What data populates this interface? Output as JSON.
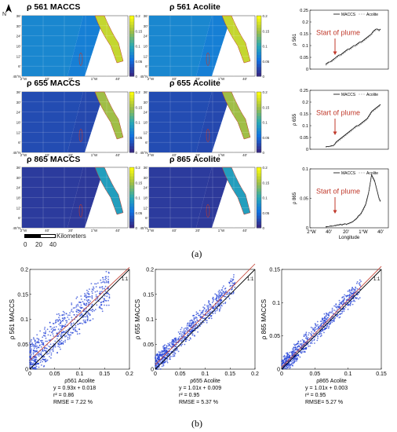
{
  "north_arrow": "N",
  "maps": [
    {
      "title": "ρ 561 MACCS",
      "cbar_ticks": [
        "0.2",
        "0.15",
        "0.1",
        "0.05",
        "0"
      ]
    },
    {
      "title": "ρ 561 Acolite",
      "cbar_ticks": [
        "0.2",
        "0.15",
        "0.1",
        "0.05",
        "0"
      ]
    },
    {
      "title": "ρ 655 MACCS",
      "cbar_ticks": [
        "0.2",
        "0.15",
        "0.1",
        "0.05",
        "0"
      ]
    },
    {
      "title": "ρ 655 Acolite",
      "cbar_ticks": [
        "0.2",
        "0.15",
        "0.1",
        "0.05",
        "0"
      ]
    },
    {
      "title": "ρ 865 MACCS",
      "cbar_ticks": [
        "0.2",
        "0.15",
        "0.1",
        "0.05",
        "0"
      ]
    },
    {
      "title": "ρ 865 Acolite",
      "cbar_ticks": [
        "0.2",
        "0.15",
        "0.1",
        "0.05",
        "0"
      ]
    }
  ],
  "map_lat_ticks": [
    "36'",
    "30'",
    "24'",
    "18'",
    "12'",
    "6'",
    "45°N"
  ],
  "map_lon_ticks": [
    "2°W",
    "40'",
    "20'",
    "1°W",
    "40'"
  ],
  "scale_bar": {
    "label": "Kilometers",
    "ticks": [
      "0",
      "20",
      "40"
    ]
  },
  "caption_a": "(a)",
  "caption_b": "(b)",
  "chart_data": [
    {
      "type": "line",
      "ylabel": "ρ 561",
      "ylim": [
        0,
        0.25
      ],
      "yticks": [
        "0.25",
        "0.2",
        "0.15",
        "0.1",
        "0.05",
        "0"
      ],
      "annotation": "Start of plume",
      "series": [
        {
          "name": "MACCS",
          "color": "#000000",
          "values": [
            0.02,
            0.025,
            0.03,
            0.03,
            0.035,
            0.04,
            0.045,
            0.05,
            0.055,
            0.06,
            0.06,
            0.065,
            0.07,
            0.075,
            0.08,
            0.085,
            0.085,
            0.09,
            0.095,
            0.1,
            0.1,
            0.105,
            0.11,
            0.115,
            0.115,
            0.12,
            0.125,
            0.13,
            0.135,
            0.14,
            0.145,
            0.15,
            0.16,
            0.165,
            0.17,
            0.17,
            0.165,
            0.17
          ]
        },
        {
          "name": "Acolite",
          "color": "#888888",
          "values": [
            0.015,
            0.02,
            0.025,
            0.03,
            0.03,
            0.035,
            0.04,
            0.045,
            0.05,
            0.055,
            0.055,
            0.06,
            0.065,
            0.07,
            0.075,
            0.08,
            0.08,
            0.085,
            0.09,
            0.095,
            0.095,
            0.1,
            0.105,
            0.11,
            0.11,
            0.115,
            0.12,
            0.125,
            0.13,
            0.135,
            0.14,
            0.145,
            0.155,
            0.16,
            0.165,
            0.165,
            0.16,
            0.165
          ]
        }
      ]
    },
    {
      "type": "line",
      "ylabel": "ρ 655",
      "ylim": [
        0,
        0.25
      ],
      "yticks": [
        "0.25",
        "0.2",
        "0.15",
        "0.1",
        "0.05",
        "0"
      ],
      "annotation": "Start of plume",
      "series": [
        {
          "name": "MACCS",
          "color": "#000000",
          "values": [
            0.01,
            0.012,
            0.012,
            0.013,
            0.015,
            0.015,
            0.02,
            0.03,
            0.035,
            0.04,
            0.045,
            0.05,
            0.055,
            0.06,
            0.065,
            0.07,
            0.075,
            0.08,
            0.085,
            0.09,
            0.095,
            0.1,
            0.1,
            0.105,
            0.11,
            0.115,
            0.12,
            0.125,
            0.13,
            0.14,
            0.15,
            0.16,
            0.165,
            0.17,
            0.175,
            0.18,
            0.185,
            0.19
          ]
        },
        {
          "name": "Acolite",
          "color": "#888888",
          "values": [
            0.008,
            0.01,
            0.01,
            0.011,
            0.012,
            0.013,
            0.018,
            0.025,
            0.03,
            0.035,
            0.04,
            0.045,
            0.05,
            0.055,
            0.06,
            0.065,
            0.07,
            0.075,
            0.08,
            0.085,
            0.09,
            0.095,
            0.095,
            0.1,
            0.105,
            0.11,
            0.115,
            0.12,
            0.125,
            0.135,
            0.145,
            0.155,
            0.16,
            0.165,
            0.17,
            0.175,
            0.18,
            0.185
          ]
        }
      ]
    },
    {
      "type": "line",
      "ylabel": "ρ 865",
      "ylim": [
        0,
        0.1
      ],
      "yticks": [
        "0.1",
        "0.05",
        "0"
      ],
      "xticks": [
        "2°W",
        "40'",
        "20'",
        "1°W",
        "40'"
      ],
      "xlabel": "Longitude",
      "annotation": "Start of plume",
      "series": [
        {
          "name": "MACCS",
          "color": "#000000",
          "values": [
            0.002,
            0.002,
            0.002,
            0.003,
            0.003,
            0.003,
            0.004,
            0.004,
            0.005,
            0.005,
            0.006,
            0.005,
            0.006,
            0.007,
            0.006,
            0.007,
            0.008,
            0.009,
            0.01,
            0.012,
            0.014,
            0.016,
            0.02,
            0.022,
            0.025,
            0.03,
            0.035,
            0.04,
            0.05,
            0.06,
            0.075,
            0.09,
            0.085,
            0.08,
            0.07,
            0.06,
            0.05,
            0.045
          ]
        },
        {
          "name": "Acolite",
          "color": "#888888",
          "values": [
            0.001,
            0.001,
            0.002,
            0.002,
            0.002,
            0.003,
            0.003,
            0.003,
            0.004,
            0.004,
            0.005,
            0.004,
            0.005,
            0.006,
            0.005,
            0.006,
            0.007,
            0.008,
            0.009,
            0.011,
            0.013,
            0.015,
            0.018,
            0.02,
            0.023,
            0.028,
            0.032,
            0.038,
            0.047,
            0.058,
            0.072,
            0.088,
            0.082,
            0.078,
            0.068,
            0.058,
            0.048,
            0.043
          ]
        }
      ]
    },
    {
      "type": "scatter",
      "xlabel": "ρ561 Acolite",
      "ylabel": "ρ 561 MACCS",
      "xlim": [
        0,
        0.2
      ],
      "ylim": [
        0,
        0.2
      ],
      "xticks": [
        "0",
        "0.05",
        "0.1",
        "0.15",
        "0.2"
      ],
      "yticks": [
        "0",
        "0.05",
        "0.1",
        "0.15",
        "0.2"
      ],
      "one_to_one": "1:1",
      "fit": {
        "slope": 0.93,
        "intercept": 0.018
      },
      "stats": [
        "y = 0.93x + 0.018",
        "r² = 0.86",
        "RMSE = 7.22 %"
      ]
    },
    {
      "type": "scatter",
      "xlabel": "ρ655 Acolite",
      "ylabel": "ρ 655 MACCS",
      "xlim": [
        0,
        0.2
      ],
      "ylim": [
        0,
        0.2
      ],
      "xticks": [
        "0",
        "0.05",
        "0.1",
        "0.15",
        "0.2"
      ],
      "yticks": [
        "0",
        "0.05",
        "0.1",
        "0.15",
        "0.2"
      ],
      "one_to_one": "1:1",
      "fit": {
        "slope": 1.01,
        "intercept": 0.009
      },
      "stats": [
        "y = 1.01x + 0.009",
        "r² = 0.95",
        "RMSE = 5.37 %"
      ]
    },
    {
      "type": "scatter",
      "xlabel": "ρ865 Acolite",
      "ylabel": "ρ 865 MACCS",
      "xlim": [
        0,
        0.15
      ],
      "ylim": [
        0,
        0.15
      ],
      "xticks": [
        "0",
        "0.05",
        "0.1",
        "0.15"
      ],
      "yticks": [
        "0",
        "0.05",
        "0.1",
        "0.15"
      ],
      "one_to_one": "1:1",
      "fit": {
        "slope": 1.01,
        "intercept": 0.003
      },
      "stats": [
        "y = 1.01x + 0.003",
        "r² = 0.95",
        "RMSE= 5.27 %"
      ]
    }
  ]
}
